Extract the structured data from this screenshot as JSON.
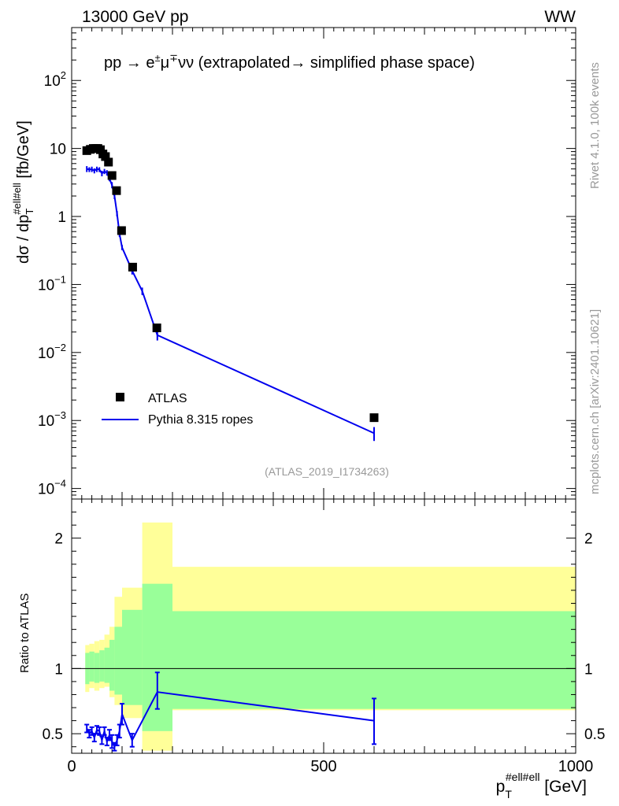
{
  "header": {
    "energy_label": "13000 GeV pp",
    "process_label": "WW",
    "main_title_pre": "pp → e",
    "main_title_sup1": "±",
    "main_title_mu": "μ",
    "main_title_sup2": "∓",
    "main_title_post": "νν (extrapolated→ simplified phase space)"
  },
  "side_labels": {
    "rivet": "Rivet 4.1.0,  100k events",
    "mcplots": "mcplots.cern.ch [arXiv:2401.10621]"
  },
  "analysis_id": "(ATLAS_2019_I1734263)",
  "legend": {
    "data_label": "ATLAS",
    "mc_label": "Pythia 8.315 ropes"
  },
  "colors": {
    "data": "#000000",
    "mc": "#0000ee",
    "band_outer": "#ffff99",
    "band_inner": "#99ff99"
  },
  "chart_data": [
    {
      "type": "scatter",
      "panel": "main",
      "yscale": "log",
      "ylabel_main": "dσ / dp",
      "ylabel_sub": "T",
      "ylabel_sup": "#ell#ell",
      "ylabel_unit": " [fb/GeV]",
      "xlim": [
        0,
        1000
      ],
      "ylim": [
        7e-05,
        600
      ],
      "y_ticks": [
        {
          "value": 100,
          "base": "10",
          "exp": "2"
        },
        {
          "value": 10,
          "base": "10",
          "exp": ""
        },
        {
          "value": 1,
          "base": "1",
          "exp": ""
        },
        {
          "value": 0.1,
          "base": "10",
          "exp": "−1"
        },
        {
          "value": 0.01,
          "base": "10",
          "exp": "−2"
        },
        {
          "value": 0.001,
          "base": "10",
          "exp": "−3"
        },
        {
          "value": 0.0001,
          "base": "10",
          "exp": "−4"
        }
      ],
      "series": [
        {
          "name": "ATLAS",
          "style": "markers",
          "x": [
            30,
            37,
            43,
            48,
            52,
            57,
            62,
            67,
            73,
            80,
            89,
            99,
            121,
            169,
            600
          ],
          "y": [
            9.3,
            9.7,
            10.0,
            10.0,
            10.0,
            9.6,
            8.3,
            7.6,
            6.3,
            4.0,
            2.4,
            0.62,
            0.18,
            0.023,
            0.0011
          ]
        },
        {
          "name": "Pythia 8.315 ropes",
          "style": "line",
          "x": [
            30,
            35,
            40,
            45,
            50,
            55,
            60,
            65,
            70,
            75,
            80,
            85,
            90,
            95,
            100,
            120,
            140,
            170,
            600
          ],
          "y": [
            5.0,
            4.9,
            4.95,
            4.7,
            5.0,
            4.9,
            4.3,
            4.6,
            4.4,
            3.6,
            2.9,
            2.0,
            1.1,
            0.55,
            0.35,
            0.16,
            0.08,
            0.018,
            0.00065
          ],
          "err_lo": [
            4.5,
            4.5,
            4.5,
            4.3,
            4.5,
            4.5,
            3.9,
            4.2,
            4.0,
            3.3,
            2.6,
            1.8,
            1.0,
            0.5,
            0.32,
            0.14,
            0.07,
            0.015,
            0.0005
          ],
          "err_hi": [
            5.5,
            5.3,
            5.4,
            5.1,
            5.4,
            5.3,
            4.7,
            5.0,
            4.8,
            3.9,
            3.2,
            2.2,
            1.2,
            0.6,
            0.38,
            0.18,
            0.09,
            0.021,
            0.0008
          ]
        }
      ]
    },
    {
      "type": "line",
      "panel": "ratio",
      "ylabel": "Ratio to ATLAS",
      "xlabel_main": "p",
      "xlabel_sub": "T",
      "xlabel_sup": "#ell#ell",
      "xlabel_unit": " [GeV]",
      "xlim": [
        0,
        1000
      ],
      "ylim": [
        0.35,
        2.3
      ],
      "x_ticks": [
        0,
        500,
        1000
      ],
      "y_ticks": [
        0.5,
        1,
        2
      ],
      "bands": {
        "edges": [
          27,
          35,
          45,
          55,
          65,
          75,
          85,
          100,
          140,
          200,
          1000
        ],
        "outer_lo": [
          0.82,
          0.85,
          0.83,
          0.85,
          0.86,
          0.78,
          0.72,
          0.62,
          0.37,
          0.68
        ],
        "outer_hi": [
          1.18,
          1.19,
          1.21,
          1.22,
          1.26,
          1.32,
          1.55,
          1.62,
          2.12,
          1.78
        ],
        "inner_lo": [
          0.88,
          0.9,
          0.89,
          0.9,
          0.89,
          0.83,
          0.8,
          0.72,
          0.52,
          0.69
        ],
        "inner_hi": [
          1.12,
          1.13,
          1.12,
          1.14,
          1.16,
          1.22,
          1.32,
          1.45,
          1.65,
          1.44
        ]
      },
      "series": [
        {
          "name": "Pythia 8.315 ropes / ATLAS",
          "x": [
            30,
            35,
            40,
            45,
            50,
            55,
            60,
            65,
            70,
            75,
            80,
            85,
            90,
            95,
            100,
            120,
            170,
            600
          ],
          "y": [
            0.54,
            0.5,
            0.52,
            0.47,
            0.53,
            0.52,
            0.45,
            0.52,
            0.44,
            0.49,
            0.44,
            0.4,
            0.45,
            0.52,
            0.65,
            0.45,
            0.82,
            0.6
          ],
          "err_lo": [
            0.51,
            0.47,
            0.49,
            0.44,
            0.5,
            0.49,
            0.42,
            0.49,
            0.41,
            0.45,
            0.39,
            0.37,
            0.41,
            0.47,
            0.57,
            0.4,
            0.69,
            0.42
          ],
          "err_hi": [
            0.57,
            0.53,
            0.55,
            0.5,
            0.56,
            0.55,
            0.48,
            0.55,
            0.47,
            0.53,
            0.49,
            0.43,
            0.49,
            0.57,
            0.73,
            0.5,
            0.97,
            0.77
          ]
        }
      ]
    }
  ]
}
